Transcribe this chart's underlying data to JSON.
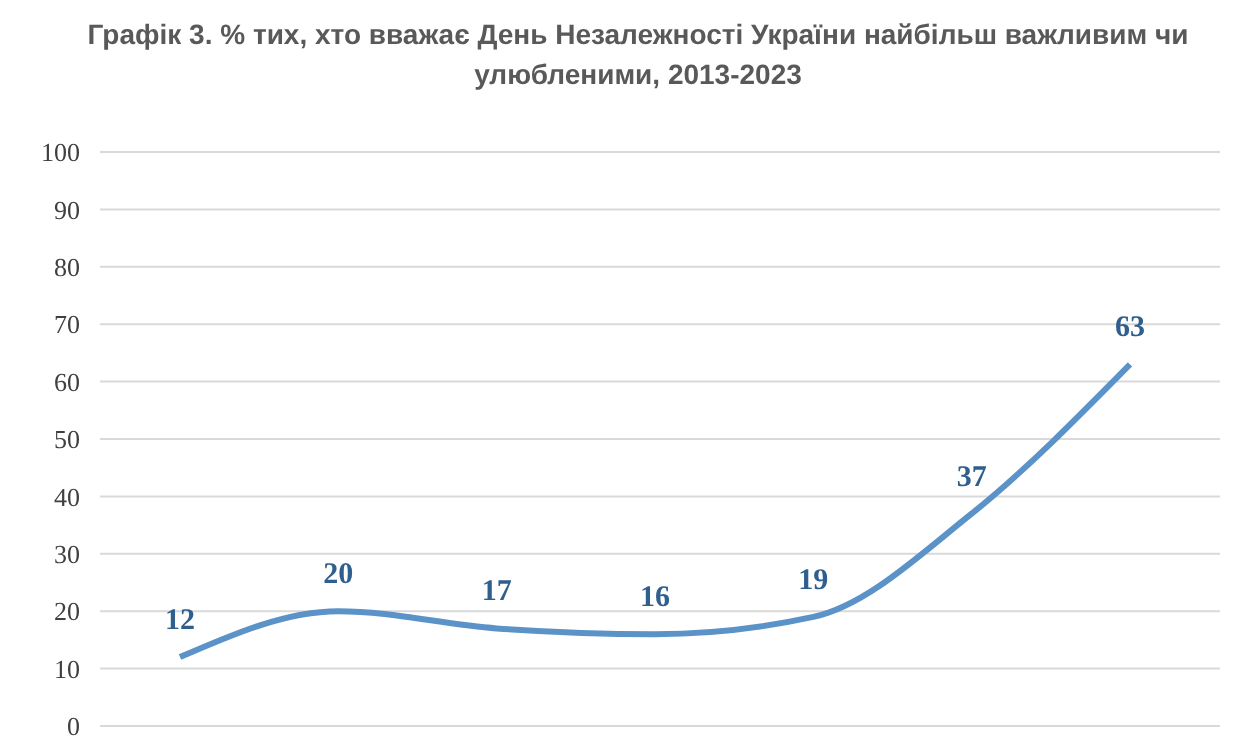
{
  "chart_data": {
    "type": "line",
    "title": "Графік 3.  % тих, хто вважає День Незалежності України найбільш важливим чи улюбленими, 2013-2023",
    "categories": [
      null,
      null,
      null,
      null,
      null,
      null,
      null
    ],
    "series": [
      {
        "color": "#5b93c8",
        "values": [
          12,
          20,
          17,
          16,
          19,
          37,
          63
        ]
      }
    ],
    "ylim": [
      0,
      100
    ],
    "yticks": [
      0,
      10,
      20,
      30,
      40,
      50,
      60,
      70,
      80,
      90,
      100
    ],
    "grid": "y",
    "data_labels": true,
    "marker": "none",
    "line_style": "solid"
  }
}
